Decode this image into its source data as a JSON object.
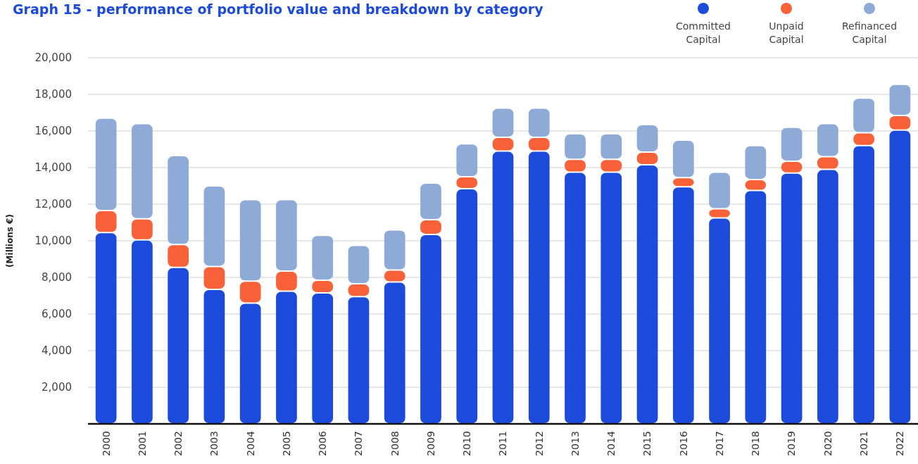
{
  "chart_data": {
    "type": "bar",
    "stacked": true,
    "title": "Graph 15 - performance of portfolio value and breakdown by category",
    "ylabel": "(Millions €)",
    "categories": [
      "2000",
      "2001",
      "2002",
      "2003",
      "2004",
      "2005",
      "2006",
      "2007",
      "2008",
      "2009",
      "2010",
      "2011",
      "2012",
      "2013",
      "2014",
      "2015",
      "2016",
      "2017",
      "2018",
      "2019",
      "2020",
      "2021",
      "2022"
    ],
    "series": [
      {
        "name": "Committed Capital",
        "color": "#1c4bdc",
        "values": [
          10450,
          10050,
          8550,
          7350,
          6600,
          7250,
          7150,
          6950,
          7750,
          10350,
          12850,
          14900,
          14900,
          13750,
          13750,
          14150,
          12950,
          11250,
          12750,
          13700,
          13900,
          15200,
          16050
        ]
      },
      {
        "name": "Unpaid Capital",
        "color": "#f96138",
        "values": [
          1200,
          1150,
          1250,
          1250,
          1200,
          1100,
          700,
          700,
          650,
          800,
          650,
          750,
          750,
          700,
          700,
          700,
          500,
          500,
          600,
          650,
          700,
          700,
          800
        ]
      },
      {
        "name": "Refinanced Capital",
        "color": "#8eabd8",
        "values": [
          5050,
          5200,
          4850,
          4400,
          4450,
          3900,
          2450,
          2100,
          2200,
          2000,
          1800,
          1600,
          1600,
          1400,
          1400,
          1500,
          2050,
          2000,
          1850,
          1850,
          1800,
          1900,
          1700
        ]
      }
    ],
    "ylim": [
      0,
      20000
    ],
    "yticks": [
      {
        "value": 2000,
        "label": "2,000"
      },
      {
        "value": 4000,
        "label": "4,000"
      },
      {
        "value": 6000,
        "label": "6,000"
      },
      {
        "value": 8000,
        "label": "8,000"
      },
      {
        "value": 10000,
        "label": "10,000"
      },
      {
        "value": 12000,
        "label": "12,000"
      },
      {
        "value": 14000,
        "label": "14,000"
      },
      {
        "value": 16000,
        "label": "16,000"
      },
      {
        "value": 18000,
        "label": "18,000"
      },
      {
        "value": 20000,
        "label": "20,000"
      }
    ],
    "grid": "y",
    "legend": "top right"
  }
}
